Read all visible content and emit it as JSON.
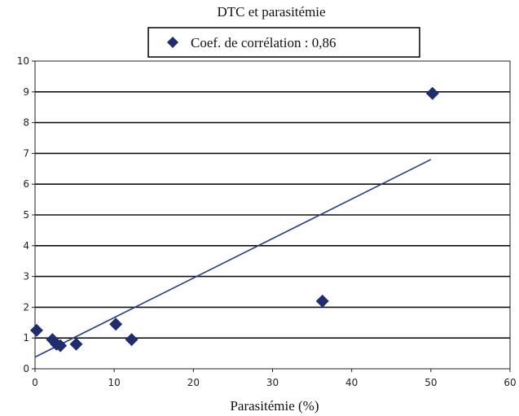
{
  "chart_data": {
    "type": "scatter",
    "title": "DTC et parasitémie",
    "xlabel": "Parasitémie (%)",
    "ylabel": "",
    "xlim": [
      0,
      60
    ],
    "ylim": [
      0,
      10
    ],
    "x_ticks": [
      "0",
      "10",
      "20",
      "30",
      "40",
      "50",
      "60"
    ],
    "y_ticks": [
      "0",
      "1",
      "2",
      "3",
      "4",
      "5",
      "6",
      "7",
      "8",
      "9",
      "10"
    ],
    "grid": "horizontal",
    "legend_position": "top",
    "series": [
      {
        "name": "Coef. de corrélation : 0,86",
        "marker": "diamond",
        "color": "#1f2d6e",
        "points": [
          {
            "x": 0.2,
            "y": 1.25
          },
          {
            "x": 2.2,
            "y": 0.95
          },
          {
            "x": 2.7,
            "y": 0.8
          },
          {
            "x": 3.2,
            "y": 0.75
          },
          {
            "x": 5.2,
            "y": 0.8
          },
          {
            "x": 10.2,
            "y": 1.45
          },
          {
            "x": 12.2,
            "y": 0.95
          },
          {
            "x": 36.3,
            "y": 2.2
          },
          {
            "x": 50.2,
            "y": 8.95
          }
        ]
      }
    ],
    "trendline": {
      "type": "linear",
      "color": "#2b3a8f",
      "from": {
        "x": 0,
        "y": 0.38
      },
      "to": {
        "x": 50,
        "y": 6.8
      }
    }
  }
}
